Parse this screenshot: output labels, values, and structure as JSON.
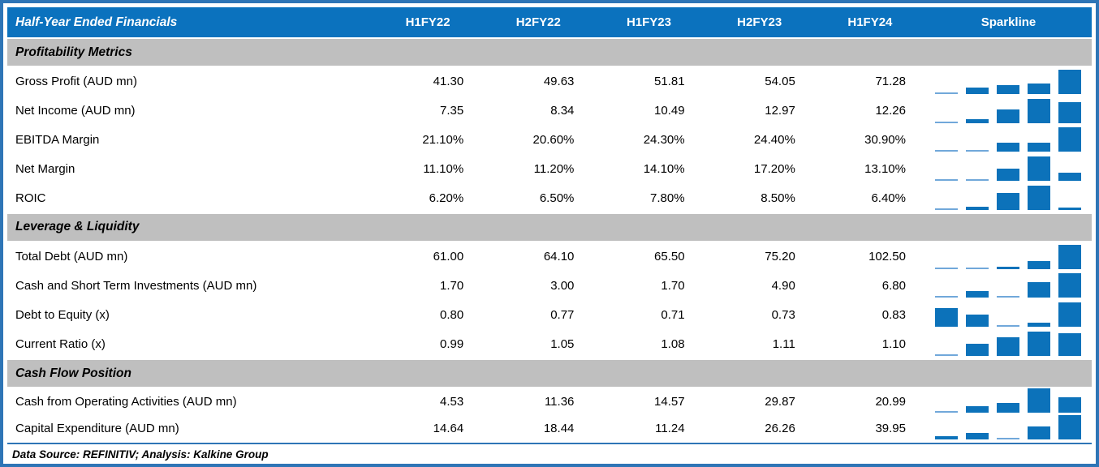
{
  "table": {
    "title": "Half-Year Ended Financials",
    "columns": [
      "H1FY22",
      "H2FY22",
      "H1FY23",
      "H2FY23",
      "H1FY24"
    ],
    "sparkline_label": "Sparkline",
    "sections": [
      {
        "label": "Profitability Metrics",
        "rows": [
          {
            "label": "Gross Profit (AUD mn)",
            "values": [
              "41.30",
              "49.63",
              "51.81",
              "54.05",
              "71.28"
            ]
          },
          {
            "label": "Net Income (AUD mn)",
            "values": [
              "7.35",
              "8.34",
              "10.49",
              "12.97",
              "12.26"
            ]
          },
          {
            "label": "EBITDA Margin",
            "values": [
              "21.10%",
              "20.60%",
              "24.30%",
              "24.40%",
              "30.90%"
            ]
          },
          {
            "label": "Net Margin",
            "values": [
              "11.10%",
              "11.20%",
              "14.10%",
              "17.20%",
              "13.10%"
            ]
          },
          {
            "label": "ROIC",
            "values": [
              "6.20%",
              "6.50%",
              "7.80%",
              "8.50%",
              "6.40%"
            ]
          }
        ]
      },
      {
        "label": "Leverage & Liquidity",
        "rows": [
          {
            "label": "Total Debt (AUD mn)",
            "values": [
              "61.00",
              "64.10",
              "65.50",
              "75.20",
              "102.50"
            ]
          },
          {
            "label": "Cash and Short Term Investments (AUD mn)",
            "values": [
              "1.70",
              "3.00",
              "1.70",
              "4.90",
              "6.80"
            ]
          },
          {
            "label": "Debt to Equity (x)",
            "values": [
              "0.80",
              "0.77",
              "0.71",
              "0.73",
              "0.83"
            ]
          },
          {
            "label": "Current Ratio (x)",
            "values": [
              "0.99",
              "1.05",
              "1.08",
              "1.11",
              "1.10"
            ]
          }
        ]
      },
      {
        "label": "Cash Flow Position",
        "rows": [
          {
            "label": "Cash from Operating Activities (AUD mn)",
            "values": [
              "4.53",
              "11.36",
              "14.57",
              "29.87",
              "20.99"
            ]
          },
          {
            "label": "Capital Expenditure (AUD mn)",
            "values": [
              "14.64",
              "18.44",
              "11.24",
              "26.26",
              "39.95"
            ]
          }
        ]
      }
    ],
    "footer": "Data Source: REFINITIV; Analysis: Kalkine Group"
  },
  "colors": {
    "header_bg": "#0B72BE",
    "header_text": "#FFFFFF",
    "section_bg": "#BFBFBF",
    "frame_border": "#2E75B6",
    "bar": "#0C72BA",
    "bar_min": "#71A8DA"
  },
  "chart_data": {
    "type": "table",
    "title": "Half-Year Ended Financials",
    "columns": [
      "H1FY22",
      "H2FY22",
      "H1FY23",
      "H2FY23",
      "H1FY24"
    ],
    "sparkline_type": "column-bars, row-relative min-max scaling",
    "sections": [
      {
        "section": "Profitability Metrics",
        "rows": [
          {
            "metric": "Gross Profit (AUD mn)",
            "values": [
              41.3,
              49.63,
              51.81,
              54.05,
              71.28
            ]
          },
          {
            "metric": "Net Income (AUD mn)",
            "values": [
              7.35,
              8.34,
              10.49,
              12.97,
              12.26
            ]
          },
          {
            "metric": "EBITDA Margin (%)",
            "values": [
              21.1,
              20.6,
              24.3,
              24.4,
              30.9
            ]
          },
          {
            "metric": "Net Margin (%)",
            "values": [
              11.1,
              11.2,
              14.1,
              17.2,
              13.1
            ]
          },
          {
            "metric": "ROIC (%)",
            "values": [
              6.2,
              6.5,
              7.8,
              8.5,
              6.4
            ]
          }
        ]
      },
      {
        "section": "Leverage & Liquidity",
        "rows": [
          {
            "metric": "Total Debt (AUD mn)",
            "values": [
              61.0,
              64.1,
              65.5,
              75.2,
              102.5
            ]
          },
          {
            "metric": "Cash and Short Term Investments (AUD mn)",
            "values": [
              1.7,
              3.0,
              1.7,
              4.9,
              6.8
            ]
          },
          {
            "metric": "Debt to Equity (x)",
            "values": [
              0.8,
              0.77,
              0.71,
              0.73,
              0.83
            ]
          },
          {
            "metric": "Current Ratio (x)",
            "values": [
              0.99,
              1.05,
              1.08,
              1.11,
              1.1
            ]
          }
        ]
      },
      {
        "section": "Cash Flow Position",
        "rows": [
          {
            "metric": "Cash from Operating Activities (AUD mn)",
            "values": [
              4.53,
              11.36,
              14.57,
              29.87,
              20.99
            ]
          },
          {
            "metric": "Capital Expenditure (AUD mn)",
            "values": [
              14.64,
              18.44,
              11.24,
              26.26,
              39.95
            ]
          }
        ]
      }
    ],
    "footer": "Data Source: REFINITIV; Analysis: Kalkine Group"
  }
}
